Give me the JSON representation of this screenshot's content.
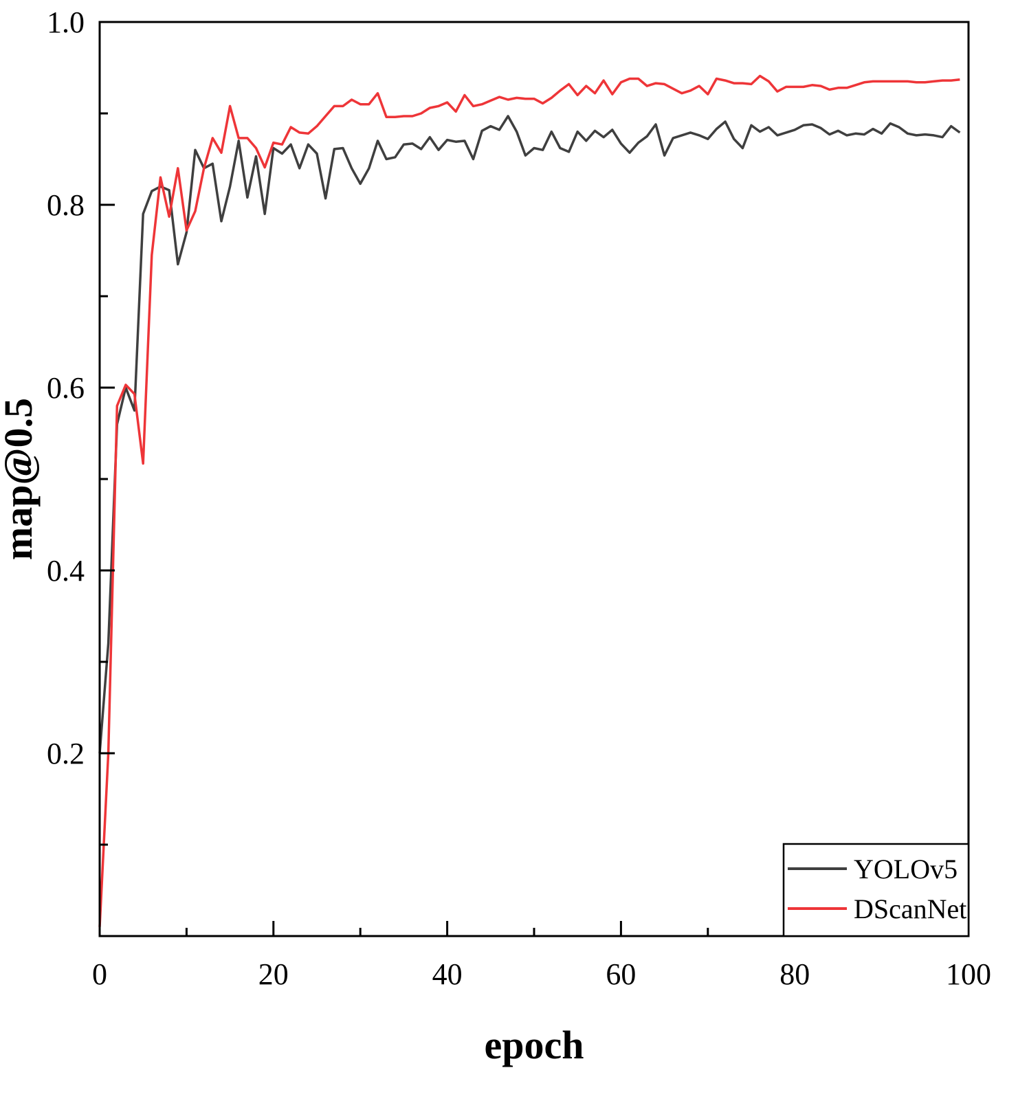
{
  "chart_data": {
    "type": "line",
    "title": "",
    "xlabel": "epoch",
    "ylabel": "map@0.5",
    "xlim": [
      0,
      100
    ],
    "ylim": [
      0,
      1.0
    ],
    "xticks": [
      0,
      20,
      40,
      60,
      80,
      100
    ],
    "xtick_labels": [
      "0",
      "20",
      "40",
      "60",
      "80",
      "100"
    ],
    "yticks": [
      0.2,
      0.4,
      0.6,
      0.8,
      1.0
    ],
    "ytick_labels": [
      "0.2",
      "0.4",
      "0.6",
      "0.8",
      "1.0"
    ],
    "grid": false,
    "legend_position": "bottom-right",
    "series": [
      {
        "name": "YOLOv5",
        "color": "#3f3f3f",
        "x": [
          0,
          1,
          2,
          3,
          4,
          5,
          6,
          7,
          8,
          9,
          10,
          11,
          12,
          13,
          14,
          15,
          16,
          17,
          18,
          19,
          20,
          21,
          22,
          23,
          24,
          25,
          26,
          27,
          28,
          29,
          30,
          31,
          32,
          33,
          34,
          35,
          36,
          37,
          38,
          39,
          40,
          41,
          42,
          43,
          44,
          45,
          46,
          47,
          48,
          49,
          50,
          51,
          52,
          53,
          54,
          55,
          56,
          57,
          58,
          59,
          60,
          61,
          62,
          63,
          64,
          65,
          66,
          67,
          68,
          69,
          70,
          71,
          72,
          73,
          74,
          75,
          76,
          77,
          78,
          79,
          80,
          81,
          82,
          83,
          84,
          85,
          86,
          87,
          88,
          89,
          90,
          91,
          92,
          93,
          94,
          95,
          96,
          97,
          98,
          99
        ],
        "values": [
          0.2,
          0.32,
          0.56,
          0.6,
          0.575,
          0.79,
          0.815,
          0.82,
          0.816,
          0.735,
          0.77,
          0.86,
          0.84,
          0.845,
          0.782,
          0.82,
          0.87,
          0.808,
          0.853,
          0.79,
          0.862,
          0.856,
          0.866,
          0.84,
          0.866,
          0.856,
          0.807,
          0.861,
          0.862,
          0.84,
          0.823,
          0.84,
          0.87,
          0.85,
          0.852,
          0.866,
          0.867,
          0.861,
          0.874,
          0.86,
          0.871,
          0.869,
          0.87,
          0.85,
          0.881,
          0.886,
          0.882,
          0.897,
          0.88,
          0.854,
          0.862,
          0.86,
          0.88,
          0.862,
          0.858,
          0.88,
          0.87,
          0.881,
          0.874,
          0.882,
          0.867,
          0.857,
          0.868,
          0.875,
          0.888,
          0.854,
          0.873,
          0.876,
          0.879,
          0.876,
          0.872,
          0.883,
          0.891,
          0.872,
          0.862,
          0.887,
          0.88,
          0.885,
          0.876,
          0.879,
          0.882,
          0.887,
          0.888,
          0.884,
          0.877,
          0.881,
          0.876,
          0.878,
          0.877,
          0.883,
          0.878,
          0.889,
          0.885,
          0.878,
          0.876,
          0.877,
          0.876,
          0.874,
          0.886,
          0.879
        ]
      },
      {
        "name": "DScanNet",
        "color": "#ee3538",
        "x": [
          0,
          1,
          2,
          3,
          4,
          5,
          6,
          7,
          8,
          9,
          10,
          11,
          12,
          13,
          14,
          15,
          16,
          17,
          18,
          19,
          20,
          21,
          22,
          23,
          24,
          25,
          26,
          27,
          28,
          29,
          30,
          31,
          32,
          33,
          34,
          35,
          36,
          37,
          38,
          39,
          40,
          41,
          42,
          43,
          44,
          45,
          46,
          47,
          48,
          49,
          50,
          51,
          52,
          53,
          54,
          55,
          56,
          57,
          58,
          59,
          60,
          61,
          62,
          63,
          64,
          65,
          66,
          67,
          68,
          69,
          70,
          71,
          72,
          73,
          74,
          75,
          76,
          77,
          78,
          79,
          80,
          81,
          82,
          83,
          84,
          85,
          86,
          87,
          88,
          89,
          90,
          91,
          92,
          93,
          94,
          95,
          96,
          97,
          98,
          99
        ],
        "values": [
          0.01,
          0.2,
          0.58,
          0.603,
          0.593,
          0.517,
          0.745,
          0.83,
          0.787,
          0.84,
          0.772,
          0.793,
          0.84,
          0.873,
          0.857,
          0.908,
          0.873,
          0.873,
          0.862,
          0.841,
          0.868,
          0.866,
          0.885,
          0.879,
          0.878,
          0.886,
          0.897,
          0.908,
          0.908,
          0.915,
          0.91,
          0.91,
          0.922,
          0.896,
          0.896,
          0.897,
          0.897,
          0.9,
          0.906,
          0.908,
          0.912,
          0.902,
          0.92,
          0.908,
          0.91,
          0.914,
          0.918,
          0.915,
          0.917,
          0.916,
          0.916,
          0.911,
          0.917,
          0.925,
          0.932,
          0.92,
          0.93,
          0.922,
          0.936,
          0.921,
          0.934,
          0.938,
          0.938,
          0.93,
          0.933,
          0.932,
          0.927,
          0.922,
          0.925,
          0.93,
          0.921,
          0.938,
          0.936,
          0.933,
          0.933,
          0.932,
          0.941,
          0.935,
          0.924,
          0.929,
          0.929,
          0.929,
          0.931,
          0.93,
          0.926,
          0.928,
          0.928,
          0.931,
          0.934,
          0.935,
          0.935,
          0.935,
          0.935,
          0.935,
          0.934,
          0.934,
          0.935,
          0.936,
          0.936,
          0.937
        ]
      }
    ]
  }
}
